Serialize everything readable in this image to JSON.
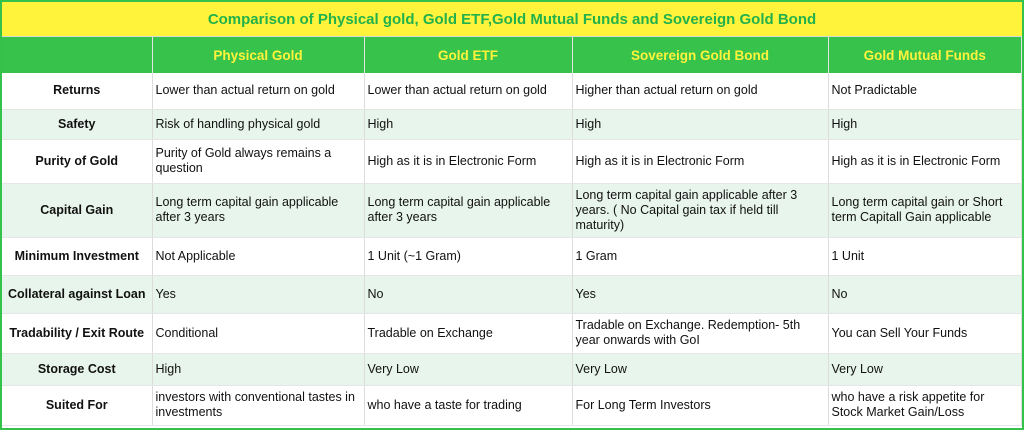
{
  "title": "Comparison of Physical gold, Gold ETF,Gold Mutual Funds and Sovereign Gold Bond",
  "columns": [
    "",
    "Physical Gold",
    "Gold ETF",
    "Sovereign Gold Bond",
    "Gold Mutual Funds"
  ],
  "rows": [
    {
      "label": "Returns",
      "cells": [
        "Lower than actual return on gold",
        "Lower than actual return on gold",
        "Higher than actual return on gold",
        "Not Pradictable"
      ]
    },
    {
      "label": "Safety",
      "cells": [
        "Risk of handling physical gold",
        "High",
        "High",
        "High"
      ]
    },
    {
      "label": "Purity of Gold",
      "cells": [
        "Purity of Gold always remains a question",
        "High as it is in Electronic Form",
        "High as it is in Electronic Form",
        "High as it is in Electronic Form"
      ]
    },
    {
      "label": "Capital Gain",
      "cells": [
        "Long term capital gain applicable after 3 years",
        "Long term capital gain applicable after 3 years",
        "Long term capital gain applicable after 3 years. ( No Capital gain tax if held till maturity)",
        "Long term capital gain or Short term Capitall Gain applicable"
      ]
    },
    {
      "label": "Minimum Investment",
      "cells": [
        "Not Applicable",
        "1 Unit (~1 Gram)",
        "1 Gram",
        "1 Unit"
      ]
    },
    {
      "label": "Collateral against Loan",
      "cells": [
        "Yes",
        "No",
        "Yes",
        "No"
      ]
    },
    {
      "label": "Tradability / Exit Route",
      "cells": [
        "Conditional",
        "Tradable on Exchange",
        "Tradable on Exchange. Redemption- 5th year onwards with GoI",
        "You can Sell Your Funds"
      ]
    },
    {
      "label": "Storage Cost",
      "cells": [
        "High",
        "Very Low",
        "Very Low",
        "Very Low"
      ]
    },
    {
      "label": "Suited For",
      "cells": [
        "investors with conventional tastes in investments",
        "who have a taste for trading",
        "For Long Term Investors",
        "who have a risk appetite for Stock Market Gain/Loss"
      ]
    }
  ],
  "colors": {
    "title_bg": "#fff33b",
    "title_text": "#22b14c",
    "header_bg": "#37c24b",
    "header_text": "#fff33b",
    "stripe": "#e8f5ec"
  }
}
